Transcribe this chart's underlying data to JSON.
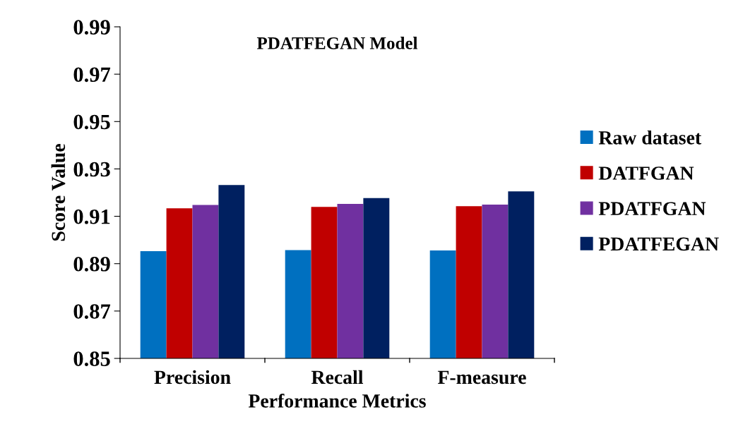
{
  "chart_data": {
    "type": "bar",
    "title": "PDATFEGAN Model",
    "xlabel": "Performance Metrics",
    "ylabel": "Score Value",
    "categories": [
      "Precision",
      "Recall",
      "F-measure"
    ],
    "series": [
      {
        "name": "Raw dataset",
        "color": "#0070c0",
        "values": [
          0.8953,
          0.8957,
          0.8956
        ]
      },
      {
        "name": "DATFGAN",
        "color": "#c00000",
        "values": [
          0.9134,
          0.914,
          0.9143
        ]
      },
      {
        "name": "PDATFGAN",
        "color": "#7030a0",
        "values": [
          0.9148,
          0.9152,
          0.9149
        ]
      },
      {
        "name": "PDATFEGAN",
        "color": "#002060",
        "values": [
          0.9232,
          0.9177,
          0.9205
        ]
      }
    ],
    "ylim": [
      0.85,
      0.99
    ],
    "yticks": [
      0.85,
      0.87,
      0.89,
      0.91,
      0.93,
      0.95,
      0.97,
      0.99
    ],
    "grid": false,
    "legend": "right"
  }
}
